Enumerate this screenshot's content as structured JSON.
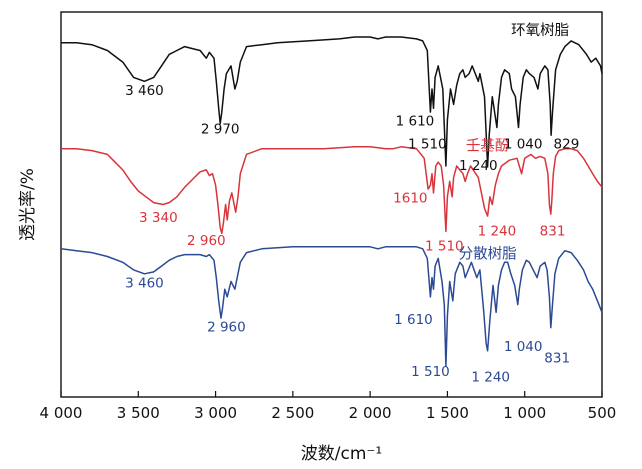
{
  "chart_data": {
    "type": "line",
    "xlabel": "波数/cm⁻¹",
    "ylabel": "透光率/%",
    "xlim": [
      4000,
      500
    ],
    "xticks": [
      {
        "value": 4000,
        "label": "4 000"
      },
      {
        "value": 3500,
        "label": "3 500"
      },
      {
        "value": 3000,
        "label": "3 000"
      },
      {
        "value": 2500,
        "label": "2 500"
      },
      {
        "value": 2000,
        "label": "2 000"
      },
      {
        "value": 1500,
        "label": "1 500"
      },
      {
        "value": 1000,
        "label": "1 000"
      },
      {
        "value": 500,
        "label": "500"
      }
    ],
    "grid": false,
    "series": [
      {
        "name": "环氧树脂",
        "color": "#111111",
        "name_pos": [
          900,
          0.94
        ],
        "points": [
          [
            4000,
            0.92
          ],
          [
            3900,
            0.92
          ],
          [
            3800,
            0.915
          ],
          [
            3700,
            0.9
          ],
          [
            3600,
            0.87
          ],
          [
            3530,
            0.83
          ],
          [
            3460,
            0.82
          ],
          [
            3400,
            0.83
          ],
          [
            3350,
            0.86
          ],
          [
            3300,
            0.89
          ],
          [
            3250,
            0.9
          ],
          [
            3200,
            0.91
          ],
          [
            3150,
            0.905
          ],
          [
            3100,
            0.9
          ],
          [
            3060,
            0.88
          ],
          [
            3040,
            0.895
          ],
          [
            3010,
            0.88
          ],
          [
            2995,
            0.82
          ],
          [
            2980,
            0.75
          ],
          [
            2970,
            0.71
          ],
          [
            2960,
            0.74
          ],
          [
            2945,
            0.8
          ],
          [
            2930,
            0.84
          ],
          [
            2900,
            0.86
          ],
          [
            2875,
            0.8
          ],
          [
            2860,
            0.82
          ],
          [
            2840,
            0.87
          ],
          [
            2800,
            0.91
          ],
          [
            2700,
            0.915
          ],
          [
            2600,
            0.92
          ],
          [
            2400,
            0.925
          ],
          [
            2200,
            0.93
          ],
          [
            2100,
            0.935
          ],
          [
            2000,
            0.935
          ],
          [
            1950,
            0.93
          ],
          [
            1900,
            0.935
          ],
          [
            1800,
            0.935
          ],
          [
            1700,
            0.93
          ],
          [
            1660,
            0.925
          ],
          [
            1630,
            0.9
          ],
          [
            1610,
            0.74
          ],
          [
            1600,
            0.8
          ],
          [
            1590,
            0.75
          ],
          [
            1580,
            0.83
          ],
          [
            1560,
            0.86
          ],
          [
            1530,
            0.8
          ],
          [
            1510,
            0.6
          ],
          [
            1500,
            0.72
          ],
          [
            1480,
            0.8
          ],
          [
            1460,
            0.76
          ],
          [
            1440,
            0.81
          ],
          [
            1420,
            0.84
          ],
          [
            1400,
            0.85
          ],
          [
            1385,
            0.83
          ],
          [
            1360,
            0.84
          ],
          [
            1340,
            0.86
          ],
          [
            1300,
            0.82
          ],
          [
            1290,
            0.84
          ],
          [
            1260,
            0.78
          ],
          [
            1240,
            0.6
          ],
          [
            1230,
            0.68
          ],
          [
            1210,
            0.78
          ],
          [
            1180,
            0.7
          ],
          [
            1170,
            0.76
          ],
          [
            1150,
            0.83
          ],
          [
            1130,
            0.85
          ],
          [
            1100,
            0.84
          ],
          [
            1085,
            0.8
          ],
          [
            1060,
            0.78
          ],
          [
            1040,
            0.7
          ],
          [
            1030,
            0.76
          ],
          [
            1010,
            0.83
          ],
          [
            990,
            0.85
          ],
          [
            970,
            0.84
          ],
          [
            940,
            0.83
          ],
          [
            915,
            0.8
          ],
          [
            900,
            0.84
          ],
          [
            870,
            0.86
          ],
          [
            850,
            0.85
          ],
          [
            835,
            0.76
          ],
          [
            829,
            0.68
          ],
          [
            820,
            0.74
          ],
          [
            800,
            0.85
          ],
          [
            770,
            0.89
          ],
          [
            740,
            0.91
          ],
          [
            700,
            0.925
          ],
          [
            650,
            0.915
          ],
          [
            600,
            0.89
          ],
          [
            570,
            0.87
          ],
          [
            540,
            0.88
          ],
          [
            510,
            0.86
          ],
          [
            500,
            0.84
          ]
        ]
      },
      {
        "name": "壬基酚",
        "color": "#d9343b",
        "name_pos": [
          1240,
          0.64
        ],
        "points": [
          [
            4000,
            0.645
          ],
          [
            3900,
            0.645
          ],
          [
            3800,
            0.64
          ],
          [
            3700,
            0.63
          ],
          [
            3650,
            0.61
          ],
          [
            3600,
            0.59
          ],
          [
            3550,
            0.56
          ],
          [
            3500,
            0.535
          ],
          [
            3450,
            0.52
          ],
          [
            3400,
            0.505
          ],
          [
            3340,
            0.5
          ],
          [
            3300,
            0.505
          ],
          [
            3250,
            0.52
          ],
          [
            3200,
            0.545
          ],
          [
            3150,
            0.565
          ],
          [
            3100,
            0.585
          ],
          [
            3060,
            0.59
          ],
          [
            3040,
            0.575
          ],
          [
            3020,
            0.58
          ],
          [
            3000,
            0.55
          ],
          [
            2985,
            0.5
          ],
          [
            2970,
            0.44
          ],
          [
            2960,
            0.425
          ],
          [
            2950,
            0.45
          ],
          [
            2935,
            0.5
          ],
          [
            2925,
            0.46
          ],
          [
            2910,
            0.51
          ],
          [
            2895,
            0.53
          ],
          [
            2870,
            0.48
          ],
          [
            2855,
            0.52
          ],
          [
            2840,
            0.58
          ],
          [
            2800,
            0.63
          ],
          [
            2700,
            0.645
          ],
          [
            2500,
            0.645
          ],
          [
            2300,
            0.645
          ],
          [
            2100,
            0.65
          ],
          [
            2000,
            0.65
          ],
          [
            1900,
            0.645
          ],
          [
            1850,
            0.645
          ],
          [
            1800,
            0.65
          ],
          [
            1700,
            0.645
          ],
          [
            1650,
            0.62
          ],
          [
            1625,
            0.54
          ],
          [
            1610,
            0.55
          ],
          [
            1600,
            0.58
          ],
          [
            1590,
            0.53
          ],
          [
            1575,
            0.6
          ],
          [
            1560,
            0.61
          ],
          [
            1540,
            0.6
          ],
          [
            1525,
            0.55
          ],
          [
            1510,
            0.43
          ],
          [
            1500,
            0.52
          ],
          [
            1485,
            0.56
          ],
          [
            1470,
            0.52
          ],
          [
            1460,
            0.57
          ],
          [
            1440,
            0.6
          ],
          [
            1420,
            0.59
          ],
          [
            1400,
            0.58
          ],
          [
            1385,
            0.56
          ],
          [
            1370,
            0.58
          ],
          [
            1350,
            0.6
          ],
          [
            1300,
            0.57
          ],
          [
            1280,
            0.53
          ],
          [
            1260,
            0.49
          ],
          [
            1240,
            0.47
          ],
          [
            1225,
            0.52
          ],
          [
            1210,
            0.5
          ],
          [
            1190,
            0.55
          ],
          [
            1170,
            0.58
          ],
          [
            1150,
            0.6
          ],
          [
            1100,
            0.615
          ],
          [
            1050,
            0.62
          ],
          [
            1020,
            0.58
          ],
          [
            1000,
            0.62
          ],
          [
            960,
            0.63
          ],
          [
            930,
            0.62
          ],
          [
            900,
            0.625
          ],
          [
            870,
            0.62
          ],
          [
            850,
            0.58
          ],
          [
            840,
            0.5
          ],
          [
            831,
            0.475
          ],
          [
            825,
            0.51
          ],
          [
            815,
            0.58
          ],
          [
            800,
            0.625
          ],
          [
            780,
            0.64
          ],
          [
            740,
            0.645
          ],
          [
            700,
            0.645
          ],
          [
            660,
            0.64
          ],
          [
            620,
            0.62
          ],
          [
            590,
            0.6
          ],
          [
            560,
            0.58
          ],
          [
            530,
            0.56
          ],
          [
            500,
            0.545
          ]
        ]
      },
      {
        "name": "分散树脂",
        "color": "#2c4a94",
        "name_pos": [
          1240,
          0.36
        ],
        "points": [
          [
            4000,
            0.385
          ],
          [
            3900,
            0.38
          ],
          [
            3800,
            0.375
          ],
          [
            3700,
            0.365
          ],
          [
            3600,
            0.35
          ],
          [
            3530,
            0.33
          ],
          [
            3460,
            0.32
          ],
          [
            3400,
            0.325
          ],
          [
            3350,
            0.34
          ],
          [
            3300,
            0.355
          ],
          [
            3250,
            0.365
          ],
          [
            3200,
            0.37
          ],
          [
            3100,
            0.37
          ],
          [
            3060,
            0.365
          ],
          [
            3040,
            0.37
          ],
          [
            3010,
            0.355
          ],
          [
            2995,
            0.31
          ],
          [
            2980,
            0.25
          ],
          [
            2965,
            0.205
          ],
          [
            2955,
            0.23
          ],
          [
            2940,
            0.28
          ],
          [
            2925,
            0.26
          ],
          [
            2900,
            0.3
          ],
          [
            2875,
            0.28
          ],
          [
            2860,
            0.31
          ],
          [
            2840,
            0.35
          ],
          [
            2800,
            0.375
          ],
          [
            2700,
            0.385
          ],
          [
            2500,
            0.39
          ],
          [
            2300,
            0.39
          ],
          [
            2100,
            0.39
          ],
          [
            2000,
            0.39
          ],
          [
            1950,
            0.385
          ],
          [
            1900,
            0.39
          ],
          [
            1800,
            0.39
          ],
          [
            1700,
            0.39
          ],
          [
            1660,
            0.385
          ],
          [
            1630,
            0.36
          ],
          [
            1610,
            0.26
          ],
          [
            1600,
            0.31
          ],
          [
            1590,
            0.28
          ],
          [
            1580,
            0.34
          ],
          [
            1560,
            0.36
          ],
          [
            1535,
            0.3
          ],
          [
            1520,
            0.24
          ],
          [
            1510,
            0.08
          ],
          [
            1500,
            0.21
          ],
          [
            1485,
            0.3
          ],
          [
            1465,
            0.25
          ],
          [
            1450,
            0.32
          ],
          [
            1420,
            0.35
          ],
          [
            1400,
            0.34
          ],
          [
            1385,
            0.31
          ],
          [
            1365,
            0.33
          ],
          [
            1345,
            0.35
          ],
          [
            1310,
            0.31
          ],
          [
            1290,
            0.33
          ],
          [
            1265,
            0.22
          ],
          [
            1250,
            0.14
          ],
          [
            1240,
            0.12
          ],
          [
            1225,
            0.2
          ],
          [
            1205,
            0.29
          ],
          [
            1185,
            0.22
          ],
          [
            1170,
            0.29
          ],
          [
            1150,
            0.33
          ],
          [
            1130,
            0.35
          ],
          [
            1110,
            0.35
          ],
          [
            1090,
            0.32
          ],
          [
            1065,
            0.29
          ],
          [
            1045,
            0.24
          ],
          [
            1035,
            0.28
          ],
          [
            1015,
            0.33
          ],
          [
            990,
            0.355
          ],
          [
            970,
            0.35
          ],
          [
            945,
            0.33
          ],
          [
            920,
            0.31
          ],
          [
            900,
            0.34
          ],
          [
            870,
            0.35
          ],
          [
            855,
            0.33
          ],
          [
            840,
            0.26
          ],
          [
            831,
            0.18
          ],
          [
            820,
            0.24
          ],
          [
            805,
            0.32
          ],
          [
            780,
            0.36
          ],
          [
            740,
            0.38
          ],
          [
            700,
            0.375
          ],
          [
            660,
            0.355
          ],
          [
            620,
            0.33
          ],
          [
            590,
            0.3
          ],
          [
            560,
            0.28
          ],
          [
            530,
            0.25
          ],
          [
            500,
            0.22
          ]
        ]
      }
    ],
    "annotations": [
      {
        "text": "3 460",
        "x": 3460,
        "y": 0.785,
        "color": "#111111"
      },
      {
        "text": "2 970",
        "x": 2970,
        "y": 0.685,
        "color": "#111111"
      },
      {
        "text": "1 610",
        "x": 1710,
        "y": 0.705,
        "color": "#111111"
      },
      {
        "text": "1 510",
        "x": 1630,
        "y": 0.645,
        "color": "#111111"
      },
      {
        "text": "1 240",
        "x": 1300,
        "y": 0.59,
        "color": "#111111"
      },
      {
        "text": "1 040",
        "x": 1010,
        "y": 0.645,
        "color": "#111111"
      },
      {
        "text": "829",
        "x": 730,
        "y": 0.645,
        "color": "#111111"
      },
      {
        "text": "3 340",
        "x": 3370,
        "y": 0.455,
        "color": "#d9343b"
      },
      {
        "text": "2 960",
        "x": 3060,
        "y": 0.395,
        "color": "#d9343b"
      },
      {
        "text": "1610",
        "x": 1740,
        "y": 0.505,
        "color": "#d9343b"
      },
      {
        "text": "1 510",
        "x": 1520,
        "y": 0.38,
        "color": "#d9343b"
      },
      {
        "text": "1 240",
        "x": 1180,
        "y": 0.42,
        "color": "#d9343b"
      },
      {
        "text": "831",
        "x": 820,
        "y": 0.42,
        "color": "#d9343b"
      },
      {
        "text": "3 460",
        "x": 3460,
        "y": 0.285,
        "color": "#2c4a94"
      },
      {
        "text": "2 960",
        "x": 2930,
        "y": 0.17,
        "color": "#2c4a94"
      },
      {
        "text": "1 610",
        "x": 1720,
        "y": 0.19,
        "color": "#2c4a94"
      },
      {
        "text": "1 510",
        "x": 1610,
        "y": 0.055,
        "color": "#2c4a94"
      },
      {
        "text": "1 240",
        "x": 1220,
        "y": 0.04,
        "color": "#2c4a94"
      },
      {
        "text": "1 040",
        "x": 1010,
        "y": 0.12,
        "color": "#2c4a94"
      },
      {
        "text": "831",
        "x": 790,
        "y": 0.09,
        "color": "#2c4a94"
      }
    ]
  }
}
